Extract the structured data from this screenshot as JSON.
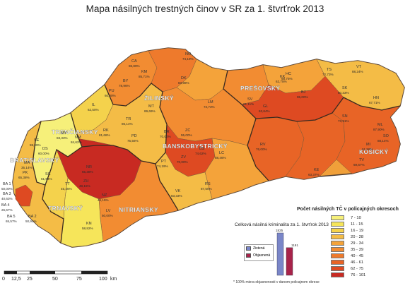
{
  "title": "Mapa násilných trestných činov v SR za 1. štvrťrok 2013",
  "regions": [
    {
      "name": "BRATISLAVSKÝ",
      "color": "#f4c440"
    },
    {
      "name": "TRNAVSKÝ",
      "color": "#f6d04c"
    },
    {
      "name": "TRENČIANSKY",
      "color": "#f5c44a"
    },
    {
      "name": "NITRIANSKY",
      "color": "#f08a2a"
    },
    {
      "name": "ŽILINSKÝ",
      "color": "#f07a28"
    },
    {
      "name": "BANSKOBYSTRICKÝ",
      "color": "#f27d2a"
    },
    {
      "name": "PREŠOVSKÝ",
      "color": "#f48c30"
    },
    {
      "name": "KOŠICKÝ",
      "color": "#e45a26"
    }
  ],
  "districts": [
    {
      "code": "CA",
      "value": "86,89%"
    },
    {
      "code": "NO",
      "value": "74,19%"
    },
    {
      "code": "KM",
      "value": "85,71%"
    },
    {
      "code": "DK",
      "value": "83,98%"
    },
    {
      "code": "BY",
      "value": "78,96%"
    },
    {
      "code": "KK",
      "value": "62,75%"
    },
    {
      "code": "TS",
      "value": "72,73%"
    },
    {
      "code": "LM",
      "value": "72,73%"
    },
    {
      "code": "PU",
      "value": "60,00%"
    },
    {
      "code": "IL",
      "value": "62,50%"
    },
    {
      "code": "MT",
      "value": "89,69%"
    },
    {
      "code": "TR",
      "value": "86,14%"
    },
    {
      "code": "SK",
      "value": "80,33%"
    },
    {
      "code": "BJ",
      "value": "95,00%"
    },
    {
      "code": "SV",
      "value": "61,11%"
    },
    {
      "code": "HN",
      "value": "67,71%"
    },
    {
      "code": "ML",
      "value": "87,90%"
    },
    {
      "code": "KE",
      "value": "63,37%"
    },
    {
      "code": "SE",
      "value": "59,09%"
    },
    {
      "code": "MY",
      "value": "83,33%"
    },
    {
      "code": "NM",
      "value": "84,62%"
    },
    {
      "code": "RK",
      "value": "81,68%"
    },
    {
      "code": "PD",
      "value": "75,56%"
    },
    {
      "code": "ZC",
      "value": "55,00%"
    },
    {
      "code": "BR",
      "value": "70,00%"
    },
    {
      "code": "NZ",
      "value": "46,15%"
    },
    {
      "code": "KN",
      "value": "58,82%"
    },
    {
      "code": "LC",
      "value": "88,46%"
    },
    {
      "code": "VK",
      "value": "83,33%"
    },
    {
      "code": "PT",
      "value": "74,19%"
    },
    {
      "code": "DS",
      "value": "60,00%"
    },
    {
      "code": "PK",
      "value": "65,38%"
    },
    {
      "code": "SC",
      "value": "61,54%"
    },
    {
      "code": "BA 1",
      "value": "50,00%"
    },
    {
      "code": "BA 3",
      "value": "40,63%"
    },
    {
      "code": "BA 4",
      "value": "26,67%"
    },
    {
      "code": "BA 5",
      "value": "65,57%"
    },
    {
      "code": "BA 2",
      "value": "50,91%"
    },
    {
      "code": "MA",
      "value": "35,14%"
    },
    {
      "code": "TT",
      "value": "45,45%"
    },
    {
      "code": "HC",
      "value": "68,75%"
    },
    {
      "code": "SO",
      "value": "88,14%"
    },
    {
      "code": "GL",
      "value": "63,64%"
    },
    {
      "code": "TV",
      "value": "69,67%"
    },
    {
      "code": "MI",
      "value": "61,86%"
    },
    {
      "code": "SN",
      "value": "73,91%"
    },
    {
      "code": "RV",
      "value": "76,00%"
    },
    {
      "code": "VT",
      "value": "88,24%"
    },
    {
      "code": "ZV",
      "value": "70,00%"
    },
    {
      "code": "BS",
      "value": "74,62%"
    },
    {
      "code": "ZH",
      "value": "48,15%"
    },
    {
      "code": "RS",
      "value": "87,50%"
    },
    {
      "code": "LV",
      "value": "50,00%"
    },
    {
      "code": "NR",
      "value": "65,38%"
    }
  ],
  "legend": {
    "title": "Počet násilných TČ v policajných okresoch",
    "items": [
      {
        "label": "7 - 10",
        "color": "#f6f07a"
      },
      {
        "label": "11 - 15",
        "color": "#f6e55a"
      },
      {
        "label": "16 - 19",
        "color": "#f4d24c"
      },
      {
        "label": "20 - 28",
        "color": "#f4bc46"
      },
      {
        "label": "29 - 34",
        "color": "#f4a33a"
      },
      {
        "label": "35 - 39",
        "color": "#f28c32"
      },
      {
        "label": "40 - 45",
        "color": "#ee7a2c"
      },
      {
        "label": "46 - 61",
        "color": "#e86426"
      },
      {
        "label": "62 - 75",
        "color": "#de4a22"
      },
      {
        "label": "76 - 101",
        "color": "#c82a22"
      }
    ]
  },
  "crime_chart": {
    "title": "Celková násilná kriminalita za 1. štvrťrok 2013",
    "items": [
      {
        "label": "Zistená",
        "value": 1825,
        "value_label": "1825",
        "color": "#7a86c8"
      },
      {
        "label": "Objasnená",
        "value": 1191,
        "value_label": "1191",
        "color": "#a8234a"
      }
    ]
  },
  "footnote": "* 100%   miera objasnenosti v danom policajnom okrese",
  "scale": {
    "labels": [
      "0",
      "12,5",
      "25",
      "50",
      "75",
      "100"
    ],
    "unit": "km"
  }
}
